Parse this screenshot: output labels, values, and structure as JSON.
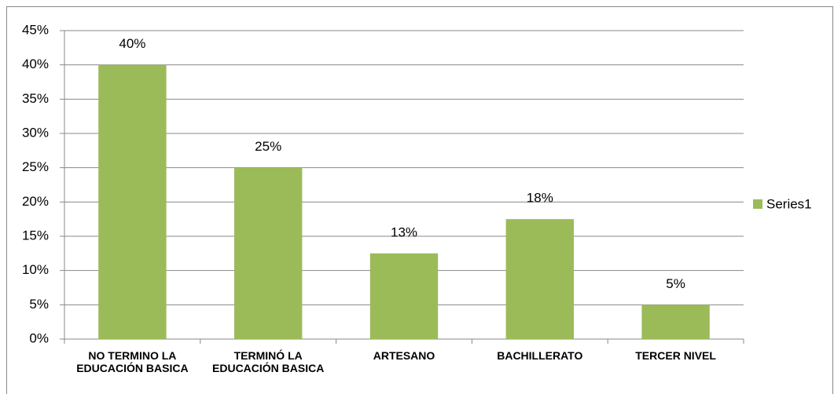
{
  "chart_data": {
    "type": "bar",
    "categories": [
      "NO TERMINO LA EDUCACIÓN BASICA",
      "TERMINÓ LA EDUCACIÓN BASICA",
      "ARTESANO",
      "BACHILLERATO",
      "TERCER NIVEL"
    ],
    "series": [
      {
        "name": "Series1",
        "color": "#9bbb59",
        "values": [
          40,
          25,
          12.5,
          17.5,
          5
        ],
        "value_labels": [
          "40%",
          "25%",
          "13%",
          "18%",
          "5%"
        ]
      }
    ],
    "ylim": [
      0,
      45
    ],
    "yticks": [
      {
        "value": 0,
        "label": "0%"
      },
      {
        "value": 5,
        "label": "5%"
      },
      {
        "value": 10,
        "label": "10%"
      },
      {
        "value": 15,
        "label": "15%"
      },
      {
        "value": 20,
        "label": "20%"
      },
      {
        "value": 25,
        "label": "25%"
      },
      {
        "value": 30,
        "label": "30%"
      },
      {
        "value": 35,
        "label": "35%"
      },
      {
        "value": 40,
        "label": "40%"
      },
      {
        "value": 45,
        "label": "45%"
      }
    ],
    "grid": true,
    "legend": "right"
  }
}
